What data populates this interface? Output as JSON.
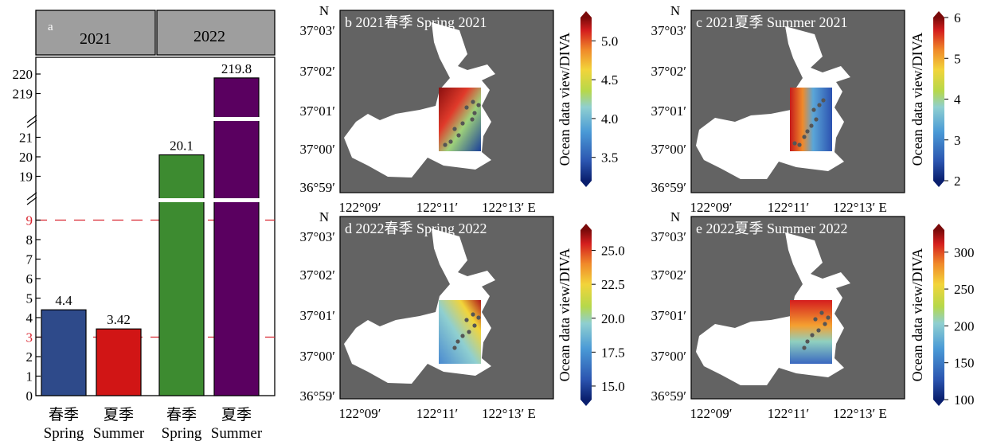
{
  "bar_panel": {
    "panel_label": "a",
    "years": [
      "2021",
      "2022"
    ],
    "y_ticks_low": [
      "0",
      "1",
      "2",
      "3",
      "4",
      "5",
      "6",
      "7",
      "8",
      "9"
    ],
    "y_ticks_mid": [
      "19",
      "20",
      "21"
    ],
    "y_ticks_high": [
      "219",
      "220"
    ],
    "ref_lines": [
      3,
      9
    ],
    "ref_color": "#d9242f",
    "category_cn": [
      "春季",
      "夏季",
      "春季",
      "夏季"
    ],
    "category_en": [
      "Spring",
      "Summer",
      "Spring",
      "Summer"
    ],
    "value_labels": [
      "4.4",
      "3.42",
      "20.1",
      "219.8"
    ],
    "bar_colors": [
      "#2e4a8a",
      "#d11515",
      "#3d8b30",
      "#5a0060"
    ]
  },
  "chart_data": [
    {
      "type": "bar",
      "categories": [
        "2021 Spring",
        "2021 Summer",
        "2022 Spring",
        "2022 Summer"
      ],
      "values": [
        4.4,
        3.42,
        20.1,
        219.8
      ],
      "axis_breaks": [
        [
          9.8,
          18.6
        ],
        [
          21.6,
          218.6
        ]
      ],
      "reference_lines": [
        3,
        9
      ]
    },
    {
      "type": "heatmap",
      "title": "b 2021春季 Spring 2021",
      "colorbar_label": "Ocean data view/DIVA",
      "colorbar_ticks": [
        "3.5",
        "4.0",
        "4.5",
        "5.0"
      ],
      "colorbar_range": [
        3.2,
        5.3
      ]
    },
    {
      "type": "heatmap",
      "title": "c 2021夏季 Summer 2021",
      "colorbar_label": "Ocean data view/DIVA",
      "colorbar_ticks": [
        "2",
        "3",
        "4",
        "5",
        "6"
      ],
      "colorbar_range": [
        2,
        6
      ]
    },
    {
      "type": "heatmap",
      "title": "d 2022春季 Spring 2022",
      "colorbar_label": "Ocean data view/DIVA",
      "colorbar_ticks": [
        "15.0",
        "17.5",
        "20.0",
        "22.5",
        "25.0"
      ],
      "colorbar_range": [
        14,
        26.5
      ]
    },
    {
      "type": "heatmap",
      "title": "e 2022夏季 Summer 2022",
      "colorbar_label": "Ocean data view/DIVA",
      "colorbar_ticks": [
        "100",
        "150",
        "200",
        "250",
        "300"
      ],
      "colorbar_range": [
        100,
        330
      ]
    }
  ],
  "map": {
    "north": "N",
    "east_suffix": "E",
    "lat_ticks": [
      "37°03′",
      "37°02′",
      "37°01′",
      "37°00′",
      "36°59′"
    ],
    "lon_ticks": [
      "122°09′",
      "122°11′",
      "122°13′ E"
    ],
    "land_color": "#636363",
    "water_color": "#ffffff"
  }
}
